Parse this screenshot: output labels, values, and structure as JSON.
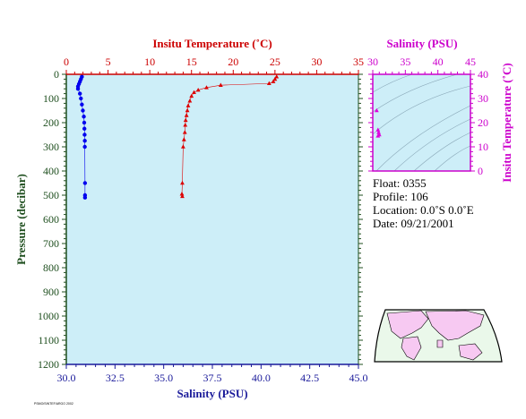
{
  "chart_data": [
    {
      "type": "scatter",
      "title": "",
      "ylabel": "Pressure (decibar)",
      "ylim": [
        1200,
        0
      ],
      "y_ticks": [
        "0",
        "100",
        "200",
        "300",
        "400",
        "500",
        "600",
        "700",
        "800",
        "900",
        "1000",
        "1100",
        "1200"
      ],
      "x_bottom": {
        "label": "Salinity (PSU)",
        "range": [
          30,
          45
        ],
        "ticks": [
          "30.0",
          "32.5",
          "35.0",
          "37.5",
          "40.0",
          "42.5",
          "45.0"
        ]
      },
      "x_top": {
        "label": "Insitu Temperature (˚C)",
        "range": [
          0,
          35
        ],
        "ticks": [
          "0",
          "5",
          "10",
          "15",
          "20",
          "25",
          "30",
          "35"
        ]
      },
      "grid": false,
      "series": [
        {
          "axis": "bottom",
          "color": "#0000ee",
          "marker": "circle",
          "points": [
            [
              30.8,
              10
            ],
            [
              30.75,
              20
            ],
            [
              30.7,
              30
            ],
            [
              30.65,
              40
            ],
            [
              30.6,
              50
            ],
            [
              30.6,
              60
            ],
            [
              30.7,
              80
            ],
            [
              30.75,
              100
            ],
            [
              30.8,
              125
            ],
            [
              30.85,
              150
            ],
            [
              30.9,
              175
            ],
            [
              30.92,
              200
            ],
            [
              30.93,
              225
            ],
            [
              30.94,
              250
            ],
            [
              30.95,
              275
            ],
            [
              30.95,
              300
            ],
            [
              30.96,
              450
            ],
            [
              30.96,
              500
            ],
            [
              30.96,
              510
            ]
          ]
        },
        {
          "axis": "top",
          "color": "#dd0000",
          "marker": "triangle",
          "points": [
            [
              25.2,
              10
            ],
            [
              25.0,
              20
            ],
            [
              24.8,
              30
            ],
            [
              24.3,
              38
            ],
            [
              18.5,
              45
            ],
            [
              16.8,
              55
            ],
            [
              15.8,
              65
            ],
            [
              15.3,
              75
            ],
            [
              15.0,
              90
            ],
            [
              14.8,
              110
            ],
            [
              14.6,
              130
            ],
            [
              14.5,
              150
            ],
            [
              14.4,
              170
            ],
            [
              14.3,
              190
            ],
            [
              14.25,
              210
            ],
            [
              14.2,
              240
            ],
            [
              14.1,
              270
            ],
            [
              14.0,
              300
            ],
            [
              13.9,
              450
            ],
            [
              13.85,
              495
            ],
            [
              13.9,
              505
            ]
          ]
        }
      ]
    },
    {
      "type": "scatter",
      "xlabel": "Salinity (PSU)",
      "ylabel": "Insitu Temperature (˚C)",
      "xlim": [
        30,
        45
      ],
      "ylim": [
        0,
        40
      ],
      "x_ticks": [
        "30",
        "35",
        "40",
        "45"
      ],
      "y_ticks": [
        "0",
        "10",
        "20",
        "30",
        "40"
      ],
      "color": "#dd00dd",
      "points": [
        [
          30.6,
          25
        ],
        [
          30.8,
          17
        ],
        [
          30.9,
          16
        ],
        [
          31.0,
          15
        ],
        [
          30.8,
          14.5
        ]
      ]
    }
  ],
  "info": {
    "float_line": "Float:  0355",
    "profile_line": "Profile:  106",
    "location_line": "Location:  0.0˚S   0.0˚E",
    "date_line": "Date:  09/21/2001"
  },
  "footer_text": "PSMO/SINTEF/ARGO 2002",
  "colors": {
    "plot_bg": "#cdeef8",
    "axis_green": "#1f4f1f",
    "axis_red": "#cc0000",
    "axis_magenta": "#cc00cc",
    "bottom_axis_blue": "#1a1a9a",
    "map_ocean": "#eaf8ea",
    "map_land": "#f7c9f2"
  }
}
